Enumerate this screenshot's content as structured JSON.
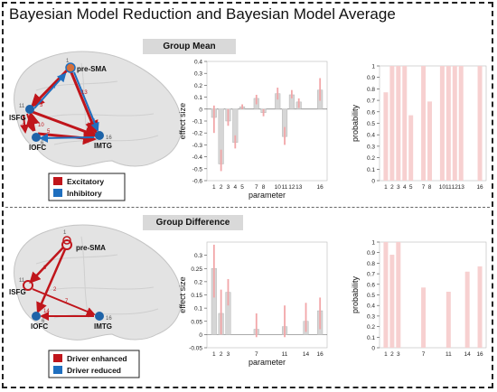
{
  "title": "Bayesian Model Reduction and Bayesian Model Average",
  "colors": {
    "excitatory": "#c0151b",
    "inhibitory": "#1f6fbf",
    "node_blue": "#1e63a8",
    "node_orange": "#d4703c",
    "bar_gray": "#d6d6d6",
    "bar_pink": "#f7d0d0",
    "ci_pink": "#f2a6a8"
  },
  "sections": [
    {
      "title": "Group Mean",
      "network": {
        "nodes": [
          "pre-SMA",
          "lSFG",
          "lOFC",
          "lMTG"
        ],
        "node_numbers": [
          "1",
          "11",
          "6",
          "16"
        ],
        "edge_numbers": [
          "13",
          "3",
          "7",
          "4",
          "10",
          "12",
          "5",
          "2"
        ],
        "legend": [
          {
            "label": "Excitatory",
            "color": "#c0151b"
          },
          {
            "label": "Inhibitory",
            "color": "#1f6fbf"
          }
        ]
      }
    },
    {
      "title": "Group Difference",
      "network": {
        "nodes": [
          "pre-SMA",
          "lSFG",
          "lOFC",
          "lMTG"
        ],
        "node_numbers": [
          "1",
          "11",
          "6",
          "16"
        ],
        "edge_numbers": [
          "3",
          "2",
          "7",
          "14"
        ],
        "legend": [
          {
            "label": "Driver enhanced",
            "color": "#c0151b"
          },
          {
            "label": "Driver reduced",
            "color": "#1f6fbf"
          }
        ]
      }
    }
  ],
  "chart_data": [
    {
      "type": "bar",
      "ylabel": "effect size",
      "xlabel": "parameter",
      "ylim": [
        -0.6,
        0.4
      ],
      "yticks": [
        "-0.6",
        "-0.5",
        "-0.4",
        "-0.3",
        "-0.2",
        "-0.1",
        "0",
        "0.1",
        "0.2",
        "0.3",
        "0.4"
      ],
      "xticks": [
        "1",
        "2",
        "3",
        "4",
        "5",
        "7",
        "8",
        "10",
        "11",
        "12",
        "13",
        "16"
      ],
      "x": [
        1,
        2,
        3,
        4,
        5,
        7,
        8,
        10,
        11,
        12,
        13,
        16
      ],
      "values": [
        -0.07,
        -0.46,
        -0.1,
        -0.28,
        0.02,
        0.09,
        -0.03,
        0.13,
        -0.23,
        0.12,
        0.06,
        0.16
      ],
      "ci_low": [
        -0.2,
        -0.52,
        -0.14,
        -0.33,
        0.0,
        0.04,
        -0.06,
        0.08,
        -0.3,
        0.09,
        0.01,
        0.07
      ],
      "ci_high": [
        0.03,
        -0.34,
        0.0,
        -0.22,
        0.04,
        0.12,
        0.0,
        0.18,
        -0.15,
        0.16,
        0.09,
        0.26
      ],
      "series_color": "gray"
    },
    {
      "type": "bar",
      "ylabel": "probability",
      "xlabel": "",
      "ylim": [
        0,
        1
      ],
      "yticks": [
        "0",
        "0.1",
        "0.2",
        "0.3",
        "0.4",
        "0.5",
        "0.6",
        "0.7",
        "0.8",
        "0.9",
        "1"
      ],
      "xticks": [
        "1",
        "2",
        "3",
        "4",
        "5",
        "7",
        "8",
        "10",
        "11",
        "12",
        "13",
        "16"
      ],
      "x": [
        1,
        2,
        3,
        4,
        5,
        7,
        8,
        10,
        11,
        12,
        13,
        16
      ],
      "values": [
        0.77,
        1.0,
        1.0,
        1.0,
        0.57,
        1.0,
        0.69,
        1.0,
        1.0,
        1.0,
        1.0,
        1.0
      ],
      "series_color": "pink"
    },
    {
      "type": "bar",
      "ylabel": "effect size",
      "xlabel": "parameter",
      "ylim": [
        -0.05,
        0.35
      ],
      "yticks": [
        "-0.05",
        "0",
        "0.05",
        "0.1",
        "0.15",
        "0.2",
        "0.25",
        "0.3"
      ],
      "xticks": [
        "1",
        "2",
        "3",
        "7",
        "11",
        "14",
        "16"
      ],
      "x": [
        1,
        2,
        3,
        7,
        11,
        14,
        16
      ],
      "values": [
        0.25,
        0.08,
        0.16,
        0.02,
        0.03,
        0.05,
        0.09
      ],
      "ci_low": [
        0.14,
        0.0,
        0.11,
        -0.01,
        -0.01,
        0.01,
        0.02
      ],
      "ci_high": [
        0.34,
        0.17,
        0.21,
        0.08,
        0.11,
        0.12,
        0.14
      ],
      "series_color": "gray"
    },
    {
      "type": "bar",
      "ylabel": "probability",
      "xlabel": "",
      "ylim": [
        0,
        1
      ],
      "yticks": [
        "0",
        "0.1",
        "0.2",
        "0.3",
        "0.4",
        "0.5",
        "0.6",
        "0.7",
        "0.8",
        "0.9",
        "1"
      ],
      "xticks": [
        "1",
        "2",
        "3",
        "7",
        "11",
        "14",
        "16"
      ],
      "x": [
        1,
        2,
        3,
        7,
        11,
        14,
        16
      ],
      "values": [
        1.0,
        0.88,
        1.0,
        0.57,
        0.53,
        0.72,
        0.77
      ],
      "series_color": "pink"
    }
  ]
}
